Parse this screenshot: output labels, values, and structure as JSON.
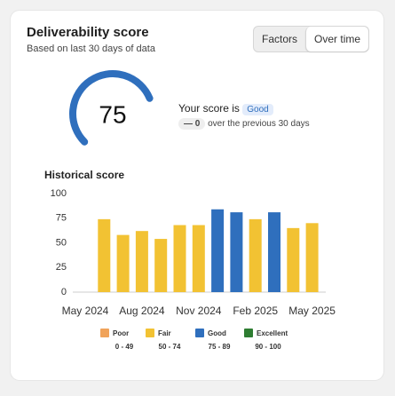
{
  "header": {
    "title": "Deliverability score",
    "subtitle": "Based on last 30 days of data"
  },
  "tabs": [
    "Factors",
    "Over time"
  ],
  "score": {
    "value": 75,
    "caption": "Your score is",
    "rating": "Good",
    "change": 0,
    "change_caption": "over the previous 30 days"
  },
  "chart_data": {
    "type": "bar",
    "title": "Historical score",
    "categories": [
      "May 2024",
      null,
      null,
      "Aug 2024",
      null,
      null,
      "Nov 2024",
      null,
      null,
      "Feb 2025",
      null,
      null,
      "May 2025"
    ],
    "values": [
      null,
      74,
      58,
      62,
      54,
      68,
      68,
      84,
      81,
      74,
      81,
      65,
      70
    ],
    "colors": [
      null,
      "#f2c233",
      "#f2c233",
      "#f2c233",
      "#f2c233",
      "#f2c233",
      "#f2c233",
      "#2f6fbd",
      "#2f6fbd",
      "#f2c233",
      "#2f6fbd",
      "#f2c233",
      "#f2c233"
    ],
    "ylim": [
      0,
      100
    ],
    "yticks": [
      0,
      25,
      50,
      75,
      100
    ],
    "legend": [
      {
        "name": "Poor",
        "range": "0 - 49",
        "color": "#f0a35a"
      },
      {
        "name": "Fair",
        "range": "50 - 74",
        "color": "#f2c233"
      },
      {
        "name": "Good",
        "range": "75 - 89",
        "color": "#2f6fbd"
      },
      {
        "name": "Excellent",
        "range": "90 - 100",
        "color": "#2e7d32"
      }
    ]
  }
}
